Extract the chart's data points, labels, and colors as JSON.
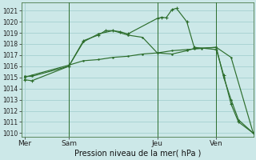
{
  "background_color": "#cce8e8",
  "grid_color": "#aad4d4",
  "line_color": "#2d6e2d",
  "title": "Pression niveau de la mer( hPa )",
  "ylabel_ticks": [
    1010,
    1011,
    1012,
    1013,
    1014,
    1015,
    1016,
    1017,
    1018,
    1019,
    1020,
    1021
  ],
  "ylim": [
    1009.7,
    1021.7
  ],
  "x_tick_labels": [
    "Mer",
    "Sam",
    "Jeu",
    "Ven"
  ],
  "x_tick_positions": [
    0,
    3,
    9,
    13
  ],
  "x_vlines": [
    3,
    9,
    13
  ],
  "xlim": [
    -0.2,
    15.5
  ],
  "line1_x": [
    0,
    0.5,
    3,
    4,
    5,
    5.5,
    6,
    6.5,
    7,
    9,
    9.3,
    9.6,
    10,
    10.3,
    11,
    11.5,
    13,
    13.5,
    14,
    14.5,
    15.5
  ],
  "line1_y": [
    1014.8,
    1014.7,
    1016.0,
    1018.3,
    1018.8,
    1019.2,
    1019.2,
    1019.1,
    1018.9,
    1020.3,
    1020.4,
    1020.35,
    1021.1,
    1021.2,
    1020.0,
    1017.7,
    1017.5,
    1015.2,
    1012.6,
    1011.0,
    1010.0
  ],
  "line2_x": [
    0,
    0.5,
    3,
    4,
    5,
    6,
    7,
    8,
    9,
    10,
    11,
    12,
    13,
    14,
    15.5
  ],
  "line2_y": [
    1015.0,
    1015.2,
    1016.1,
    1016.5,
    1016.6,
    1016.8,
    1016.9,
    1017.1,
    1017.2,
    1017.4,
    1017.5,
    1017.6,
    1017.7,
    1016.8,
    1010.0
  ],
  "line3_x": [
    0,
    0.5,
    3,
    4,
    5,
    6,
    7,
    8,
    9,
    10,
    11,
    11.5,
    13,
    13.5,
    14,
    14.5,
    15.5
  ],
  "line3_y": [
    1015.1,
    1015.1,
    1016.0,
    1018.2,
    1018.9,
    1019.2,
    1018.8,
    1018.6,
    1017.2,
    1017.1,
    1017.4,
    1017.6,
    1017.7,
    1015.0,
    1013.0,
    1011.2,
    1010.0
  ]
}
